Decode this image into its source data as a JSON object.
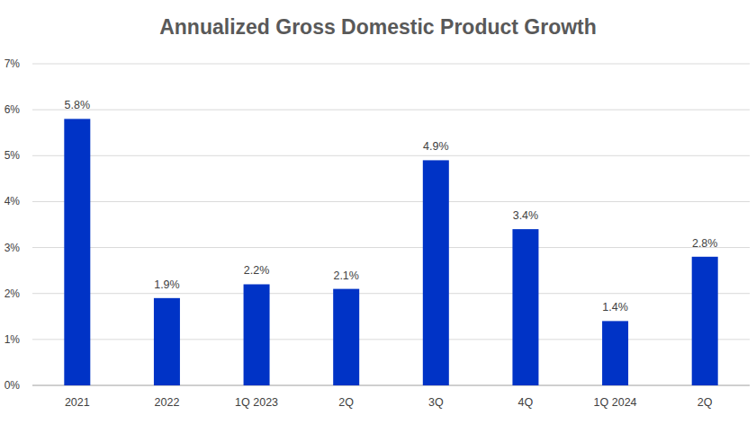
{
  "chart_data": {
    "type": "bar",
    "title": "Annualized Gross Domestic Product Growth",
    "categories": [
      "2021",
      "2022",
      "1Q 2023",
      "2Q",
      "3Q",
      "4Q",
      "1Q 2024",
      "2Q"
    ],
    "values": [
      5.8,
      1.9,
      2.2,
      2.1,
      4.9,
      3.4,
      1.4,
      2.8
    ],
    "value_labels": [
      "5.8%",
      "1.9%",
      "2.2%",
      "2.1%",
      "4.9%",
      "3.4%",
      "1.4%",
      "2.8%"
    ],
    "color": "#0033c6",
    "ylim": [
      0,
      7
    ],
    "yticks": [
      {
        "value": 0,
        "label": "0%"
      },
      {
        "value": 1,
        "label": "1%"
      },
      {
        "value": 2,
        "label": "2%"
      },
      {
        "value": 3,
        "label": "3%"
      },
      {
        "value": 4,
        "label": "4%"
      },
      {
        "value": 5,
        "label": "5%"
      },
      {
        "value": 6,
        "label": "6%"
      },
      {
        "value": 7,
        "label": "7%"
      }
    ],
    "grid": true,
    "data_labels": true
  }
}
